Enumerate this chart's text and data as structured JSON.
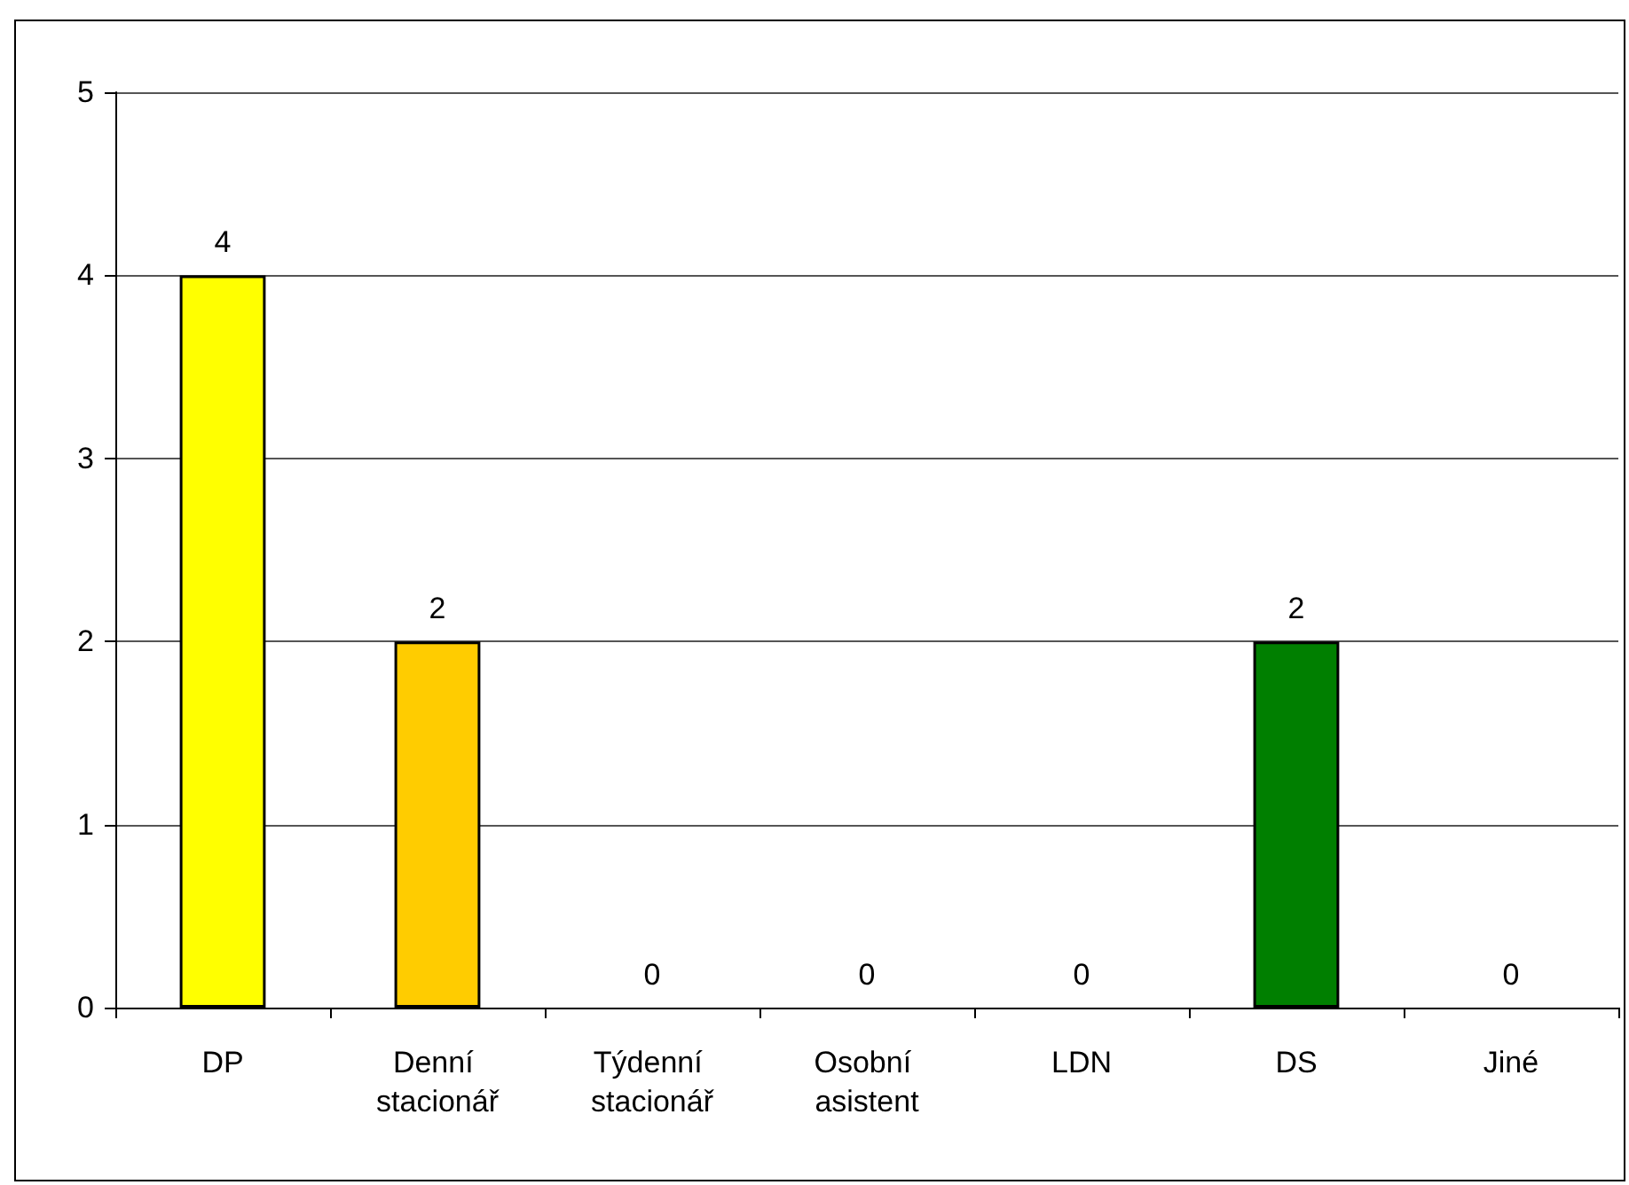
{
  "chart_data": {
    "type": "bar",
    "categories": [
      "DP",
      "Denní stacionář",
      "Týdenní stacionář",
      "Osobní asistent",
      "LDN",
      "DS",
      "Jiné"
    ],
    "values": [
      4,
      2,
      0,
      0,
      0,
      2,
      0
    ],
    "colors": [
      "#ffff00",
      "#ffcc00",
      "#ff9900",
      "#ff6600",
      "#ff0000",
      "#007f00",
      "#0000ff"
    ],
    "ylim": [
      0,
      5
    ],
    "yticks": [
      0,
      1,
      2,
      3,
      4,
      5
    ],
    "grid": "y",
    "data_labels": true
  }
}
